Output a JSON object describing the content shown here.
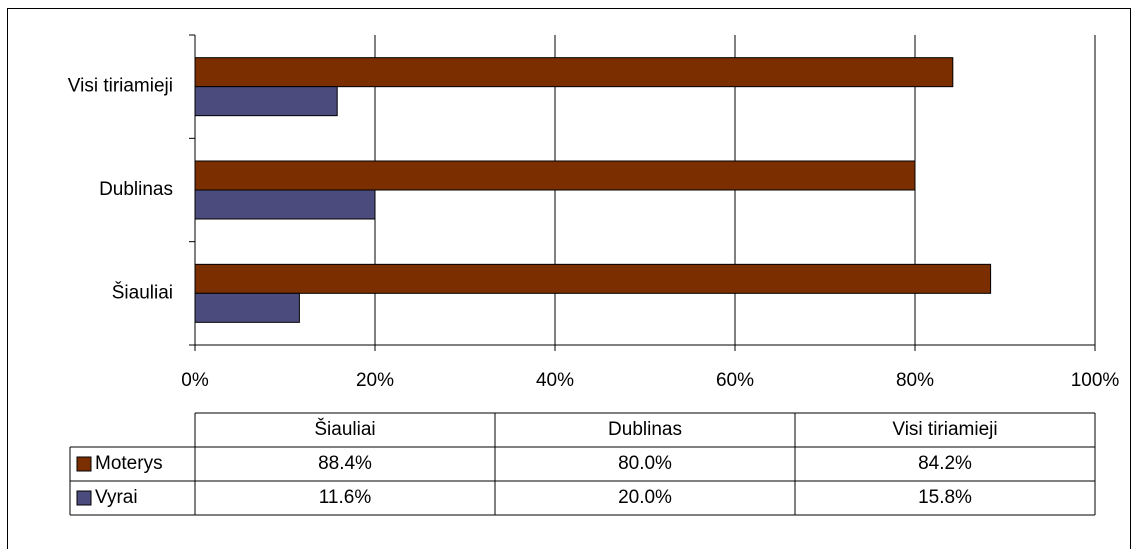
{
  "chart_data": {
    "type": "bar",
    "orientation": "horizontal",
    "categories": [
      "Šiauliai",
      "Dublinas",
      "Visi tiriamieji"
    ],
    "series": [
      {
        "name": "Moterys",
        "color": "#7b2f00",
        "values": [
          88.4,
          80.0,
          84.2
        ],
        "value_labels": [
          "88.4%",
          "80.0%",
          "84.2%"
        ]
      },
      {
        "name": "Vyrai",
        "color": "#4b4b7e",
        "values": [
          11.6,
          20.0,
          15.8
        ],
        "value_labels": [
          "11.6%",
          "20.0%",
          "15.8%"
        ]
      }
    ],
    "xlim": [
      0,
      100
    ],
    "xticks": [
      {
        "value": 0,
        "label": "0%"
      },
      {
        "value": 20,
        "label": "20%"
      },
      {
        "value": 40,
        "label": "40%"
      },
      {
        "value": 60,
        "label": "60%"
      },
      {
        "value": 80,
        "label": "80%"
      },
      {
        "value": 100,
        "label": "100%"
      }
    ],
    "grid": true,
    "data_table": true
  }
}
